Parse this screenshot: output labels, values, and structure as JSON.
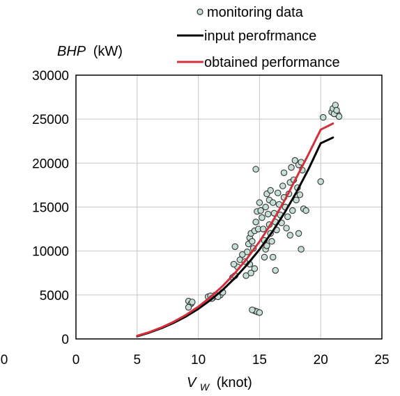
{
  "chart_data": {
    "type": "scatter",
    "title": "",
    "ylabel": "BHP (kW)",
    "ylabel_var": "BHP",
    "ylabel_unit": "(kW)",
    "xlabel": "Vw (knot)",
    "xlabel_var": "V",
    "xlabel_sub": "W",
    "xlabel_unit": "(knot)",
    "xlim": [
      0,
      25
    ],
    "ylim": [
      0,
      30000
    ],
    "xticks": [
      "0",
      "5",
      "10",
      "15",
      "20",
      "25"
    ],
    "yticks": [
      "0",
      "5000",
      "10000",
      "15000",
      "20000",
      "25000",
      "30000"
    ],
    "stray_x_label": "0",
    "grid": true,
    "legend_position": "top-right",
    "colors": {
      "monitoring": "#c6e0d6",
      "monitoring_edge": "#333333",
      "input": "#000000",
      "obtained": "#d2303c",
      "grid": "#c8c8c8"
    },
    "series": [
      {
        "name": "monitoring data",
        "kind": "scatter",
        "points": [
          [
            9.2,
            4300
          ],
          [
            9.4,
            4000
          ],
          [
            9.2,
            3600
          ],
          [
            9.5,
            4200
          ],
          [
            10.8,
            4800
          ],
          [
            11.0,
            4900
          ],
          [
            11.2,
            4700
          ],
          [
            11.4,
            5000
          ],
          [
            11.1,
            4600
          ],
          [
            11.8,
            5000
          ],
          [
            12.0,
            5300
          ],
          [
            11.6,
            4800
          ],
          [
            12.8,
            7000
          ],
          [
            13.0,
            7200
          ],
          [
            13.2,
            8200
          ],
          [
            12.9,
            8500
          ],
          [
            13.0,
            10500
          ],
          [
            13.4,
            9000
          ],
          [
            13.6,
            9600
          ],
          [
            13.8,
            8800
          ],
          [
            14.0,
            9900
          ],
          [
            14.1,
            10800
          ],
          [
            14.2,
            11500
          ],
          [
            14.3,
            12000
          ],
          [
            14.4,
            11100
          ],
          [
            14.5,
            10300
          ],
          [
            14.6,
            12300
          ],
          [
            14.7,
            13300
          ],
          [
            14.8,
            14500
          ],
          [
            14.9,
            12500
          ],
          [
            13.9,
            7200
          ],
          [
            14.3,
            7500
          ],
          [
            14.6,
            8000
          ],
          [
            14.2,
            8500
          ],
          [
            14.7,
            19300
          ],
          [
            15.0,
            15500
          ],
          [
            15.1,
            14600
          ],
          [
            15.2,
            13800
          ],
          [
            15.3,
            12500
          ],
          [
            15.4,
            11200
          ],
          [
            15.5,
            10200
          ],
          [
            15.4,
            9300
          ],
          [
            14.6,
            3200
          ],
          [
            14.8,
            3100
          ],
          [
            15.0,
            3000
          ],
          [
            14.4,
            3300
          ],
          [
            15.5,
            15000
          ],
          [
            15.6,
            16500
          ],
          [
            15.7,
            14200
          ],
          [
            15.8,
            13000
          ],
          [
            15.9,
            12000
          ],
          [
            16.0,
            11100
          ],
          [
            15.6,
            10600
          ],
          [
            15.8,
            15800
          ],
          [
            15.9,
            16900
          ],
          [
            16.1,
            15500
          ],
          [
            16.1,
            9300
          ],
          [
            16.3,
            7800
          ],
          [
            16.2,
            14300
          ],
          [
            16.3,
            13300
          ],
          [
            16.4,
            12400
          ],
          [
            16.5,
            16600
          ],
          [
            16.6,
            15300
          ],
          [
            16.7,
            14100
          ],
          [
            16.8,
            13200
          ],
          [
            16.9,
            17400
          ],
          [
            17.0,
            16100
          ],
          [
            17.0,
            18900
          ],
          [
            17.1,
            15000
          ],
          [
            17.2,
            12600
          ],
          [
            17.3,
            13900
          ],
          [
            17.4,
            16500
          ],
          [
            17.5,
            17800
          ],
          [
            17.6,
            19500
          ],
          [
            17.7,
            14600
          ],
          [
            17.8,
            18100
          ],
          [
            17.9,
            20300
          ],
          [
            18.0,
            15800
          ],
          [
            18.1,
            17200
          ],
          [
            18.2,
            19800
          ],
          [
            18.3,
            16400
          ],
          [
            18.4,
            20100
          ],
          [
            18.5,
            19200
          ],
          [
            18.6,
            14800
          ],
          [
            18.8,
            14600
          ],
          [
            18.2,
            12000
          ],
          [
            18.4,
            10200
          ],
          [
            17.5,
            11800
          ],
          [
            20.0,
            17900
          ],
          [
            20.2,
            25200
          ],
          [
            20.9,
            25800
          ],
          [
            21.0,
            26200
          ],
          [
            21.2,
            26600
          ],
          [
            21.4,
            25500
          ],
          [
            21.5,
            25300
          ],
          [
            21.1,
            25600
          ],
          [
            21.3,
            26000
          ]
        ]
      },
      {
        "name": "input perofrmance",
        "kind": "line",
        "x": [
          5,
          6,
          7,
          8,
          9,
          10,
          11,
          12,
          13,
          14,
          15,
          16,
          17,
          18,
          19,
          20,
          21
        ],
        "y": [
          300,
          720,
          1230,
          1840,
          2560,
          3420,
          4430,
          5590,
          6940,
          8470,
          10180,
          12090,
          14240,
          16640,
          19300,
          22250,
          22900
        ]
      },
      {
        "name": "obtained performance",
        "kind": "line",
        "x": [
          5,
          6,
          7,
          8,
          9,
          10,
          11,
          12,
          13,
          14,
          15,
          16,
          17,
          18,
          19,
          20,
          21
        ],
        "y": [
          350,
          780,
          1310,
          1960,
          2740,
          3670,
          4760,
          6030,
          7500,
          9180,
          11070,
          13210,
          15620,
          18300,
          21000,
          23800,
          24500
        ]
      }
    ]
  }
}
